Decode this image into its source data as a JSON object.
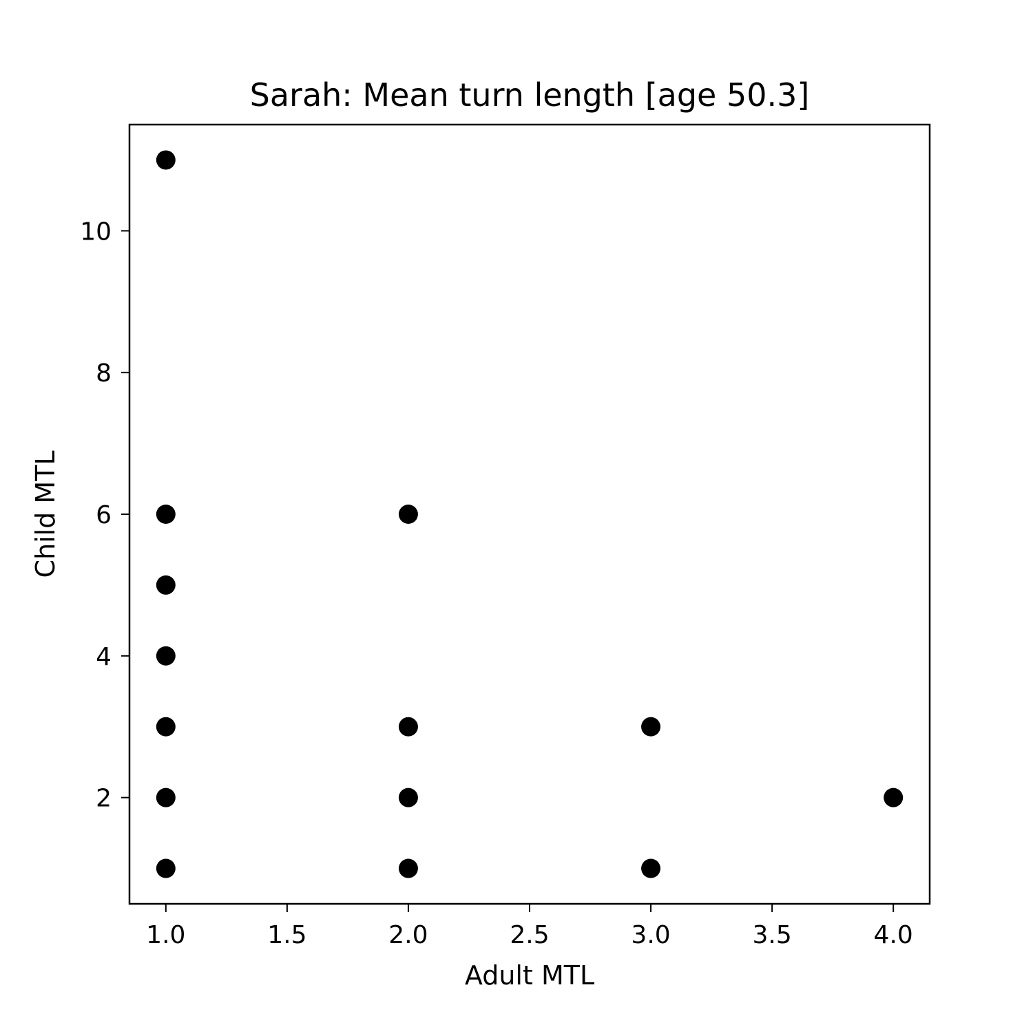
{
  "chart_data": {
    "type": "scatter",
    "title": "Sarah: Mean turn length [age 50.3]",
    "xlabel": "Adult MTL",
    "ylabel": "Child MTL",
    "xlim": [
      0.85,
      4.15
    ],
    "ylim": [
      0.5,
      11.5
    ],
    "xticks": [
      1.0,
      1.5,
      2.0,
      2.5,
      3.0,
      3.5,
      4.0
    ],
    "xtick_labels": [
      "1.0",
      "1.5",
      "2.0",
      "2.5",
      "3.0",
      "3.5",
      "4.0"
    ],
    "yticks": [
      2,
      4,
      6,
      8,
      10
    ],
    "ytick_labels": [
      "2",
      "4",
      "6",
      "8",
      "10"
    ],
    "grid": false,
    "marker_color": "#000000",
    "points": [
      {
        "x": 1,
        "y": 11
      },
      {
        "x": 1,
        "y": 6
      },
      {
        "x": 1,
        "y": 5
      },
      {
        "x": 1,
        "y": 4
      },
      {
        "x": 1,
        "y": 3
      },
      {
        "x": 1,
        "y": 2
      },
      {
        "x": 1,
        "y": 1
      },
      {
        "x": 2,
        "y": 6
      },
      {
        "x": 2,
        "y": 3
      },
      {
        "x": 2,
        "y": 2
      },
      {
        "x": 2,
        "y": 1
      },
      {
        "x": 3,
        "y": 3
      },
      {
        "x": 3,
        "y": 1
      },
      {
        "x": 4,
        "y": 2
      }
    ]
  }
}
